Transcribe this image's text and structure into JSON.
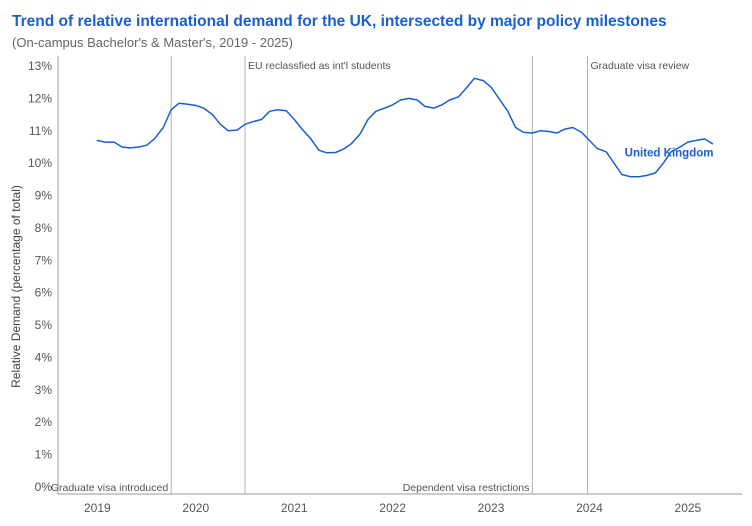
{
  "chart_data": {
    "type": "line",
    "title": "Trend of relative international demand for the UK, intersected by major policy milestones",
    "subtitle": "(On-campus Bachelor's & Master's, 2019 - 2025)",
    "ylabel": "Relative Demand (percentage of total)",
    "xlabel": "",
    "ylim": [
      0,
      13
    ],
    "xlim": [
      2018.6,
      2025.55
    ],
    "grid": false,
    "yticks": [
      0,
      1,
      2,
      3,
      4,
      5,
      6,
      7,
      8,
      9,
      10,
      11,
      12,
      13
    ],
    "ytick_labels": [
      "0%",
      "1%",
      "2%",
      "3%",
      "4%",
      "5%",
      "6%",
      "7%",
      "8%",
      "9%",
      "10%",
      "11%",
      "12%",
      "13%"
    ],
    "xticks": [
      2019,
      2020,
      2021,
      2022,
      2023,
      2024,
      2025
    ],
    "xtick_labels": [
      "2019",
      "2020",
      "2021",
      "2022",
      "2023",
      "2024",
      "2025"
    ],
    "line_color": "#1a5fd0",
    "milestones": [
      {
        "x": 2019.75,
        "label": "Graduate visa introduced",
        "label_position": "bottom-left"
      },
      {
        "x": 2020.5,
        "label": "EU reclassfied as int'l students",
        "label_position": "top-right"
      },
      {
        "x": 2023.42,
        "label": "Dependent visa restrictions",
        "label_position": "bottom-left"
      },
      {
        "x": 2023.98,
        "label": "Graduate visa review",
        "label_position": "top-right"
      }
    ],
    "series": [
      {
        "name": "United Kingdom",
        "x": [
          2019.0,
          2019.08,
          2019.17,
          2019.25,
          2019.33,
          2019.42,
          2019.5,
          2019.58,
          2019.67,
          2019.75,
          2019.83,
          2019.92,
          2020.0,
          2020.08,
          2020.17,
          2020.25,
          2020.33,
          2020.42,
          2020.5,
          2020.58,
          2020.67,
          2020.75,
          2020.83,
          2020.92,
          2021.0,
          2021.08,
          2021.17,
          2021.25,
          2021.33,
          2021.42,
          2021.5,
          2021.58,
          2021.67,
          2021.75,
          2021.83,
          2021.92,
          2022.0,
          2022.08,
          2022.17,
          2022.25,
          2022.33,
          2022.42,
          2022.5,
          2022.58,
          2022.67,
          2022.75,
          2022.83,
          2022.92,
          2023.0,
          2023.08,
          2023.17,
          2023.25,
          2023.33,
          2023.42,
          2023.5,
          2023.58,
          2023.67,
          2023.75,
          2023.83,
          2023.92,
          2024.0,
          2024.08,
          2024.17,
          2024.25,
          2024.33,
          2024.42,
          2024.5,
          2024.58,
          2024.67,
          2024.75,
          2024.83,
          2024.92,
          2025.0,
          2025.08,
          2025.17,
          2025.25
        ],
        "values": [
          10.7,
          10.65,
          10.65,
          10.5,
          10.47,
          10.5,
          10.55,
          10.75,
          11.1,
          11.65,
          11.85,
          11.82,
          11.78,
          11.7,
          11.5,
          11.2,
          11.0,
          11.02,
          11.2,
          11.28,
          11.35,
          11.6,
          11.65,
          11.62,
          11.35,
          11.05,
          10.75,
          10.4,
          10.32,
          10.33,
          10.43,
          10.6,
          10.9,
          11.35,
          11.6,
          11.7,
          11.8,
          11.95,
          12.0,
          11.95,
          11.75,
          11.7,
          11.8,
          11.95,
          12.05,
          12.32,
          12.62,
          12.55,
          12.35,
          12.0,
          11.6,
          11.1,
          10.95,
          10.93,
          11.0,
          10.98,
          10.93,
          11.05,
          11.1,
          10.95,
          10.7,
          10.45,
          10.35,
          10.0,
          9.65,
          9.58,
          9.58,
          9.62,
          9.7,
          10.0,
          10.35,
          10.5,
          10.65,
          10.7,
          10.75,
          10.6
        ]
      }
    ]
  }
}
